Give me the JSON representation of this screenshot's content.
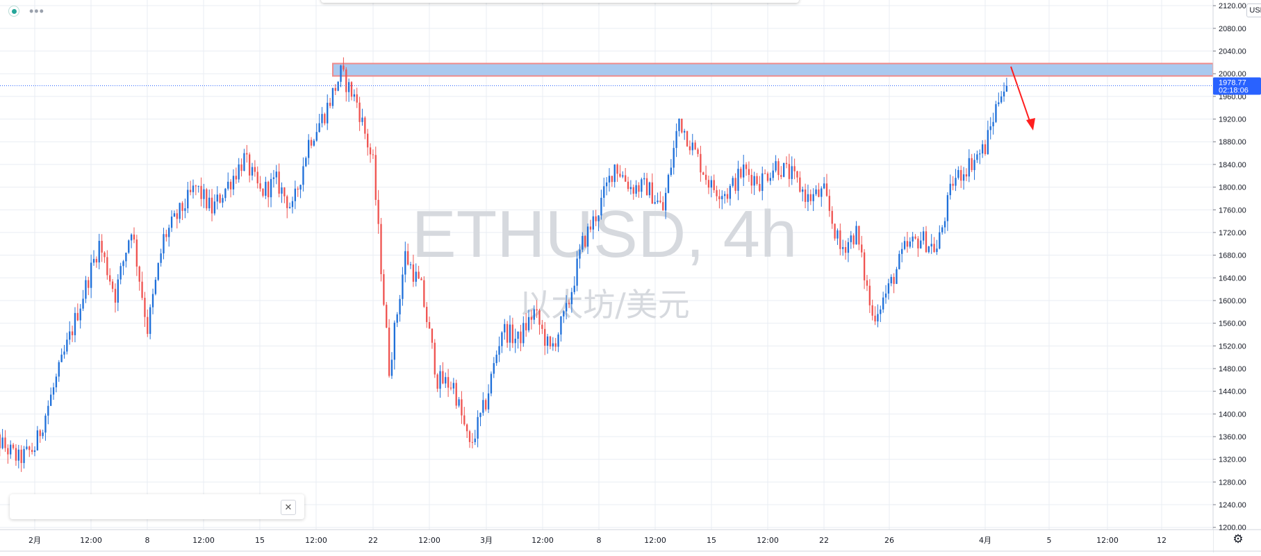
{
  "symbol_watermark": "ETHUSD, 4h",
  "description_watermark": "以太坊/美元",
  "currency": "USD",
  "last_price": "1978.77",
  "countdown": "02:18:06",
  "icons": {
    "status": "status-dot-icon",
    "more": "more-dots-icon",
    "close": "close-icon",
    "settings": "gear-icon"
  },
  "colors": {
    "up": "#1e6fd9",
    "down": "#ef5350",
    "grid": "#e9edf3",
    "zone_fill": "#a9c9ef",
    "zone_border": "#f08a8a",
    "arrow": "#ff1f1f",
    "price_label_bg": "#2962ff",
    "watermark": "#d6d9de"
  },
  "chart_data": {
    "type": "candlestick",
    "title": "ETHUSD, 4h",
    "subtitle": "以太坊/美元",
    "timeframe": "4h",
    "y_ticks": [
      "1200.00",
      "1240.00",
      "1280.00",
      "1320.00",
      "1360.00",
      "1400.00",
      "1440.00",
      "1480.00",
      "1520.00",
      "1560.00",
      "1600.00",
      "1640.00",
      "1680.00",
      "1720.00",
      "1760.00",
      "1800.00",
      "1840.00",
      "1880.00",
      "1920.00",
      "1960.00",
      "2000.00",
      "2040.00",
      "2080.00",
      "2120.00"
    ],
    "x_ticks": [
      "2月",
      "12:00",
      "8",
      "12:00",
      "15",
      "12:00",
      "22",
      "12:00",
      "3月",
      "12:00",
      "8",
      "12:00",
      "15",
      "12:00",
      "22",
      "26",
      "4月",
      "5",
      "12:00",
      "12"
    ],
    "ylim": [
      1196,
      2130
    ],
    "last_price": 1978.77,
    "resistance_zone": [
      1996,
      2018
    ],
    "anchors": [
      {
        "date": "2021-01-29",
        "price": 1370
      },
      {
        "date": "2021-01-31",
        "price": 1320
      },
      {
        "date": "2021-02-01",
        "price": 1340
      },
      {
        "date": "2021-02-03",
        "price": 1520
      },
      {
        "date": "2021-02-05",
        "price": 1700
      },
      {
        "date": "2021-02-06",
        "price": 1610
      },
      {
        "date": "2021-02-07",
        "price": 1730
      },
      {
        "date": "2021-02-08",
        "price": 1550
      },
      {
        "date": "2021-02-09",
        "price": 1710
      },
      {
        "date": "2021-02-11",
        "price": 1800
      },
      {
        "date": "2021-02-12",
        "price": 1760
      },
      {
        "date": "2021-02-14",
        "price": 1850
      },
      {
        "date": "2021-02-15",
        "price": 1790
      },
      {
        "date": "2021-02-16",
        "price": 1810
      },
      {
        "date": "2021-02-17",
        "price": 1760
      },
      {
        "date": "2021-02-18",
        "price": 1880
      },
      {
        "date": "2021-02-19",
        "price": 1930
      },
      {
        "date": "2021-02-20",
        "price": 2000
      },
      {
        "date": "2021-02-21",
        "price": 1950
      },
      {
        "date": "2021-02-22",
        "price": 1840
      },
      {
        "date": "2021-02-23",
        "price": 1480
      },
      {
        "date": "2021-02-24",
        "price": 1680
      },
      {
        "date": "2021-02-25",
        "price": 1620
      },
      {
        "date": "2021-02-26",
        "price": 1460
      },
      {
        "date": "2021-02-27",
        "price": 1450
      },
      {
        "date": "2021-02-28",
        "price": 1340
      },
      {
        "date": "2021-03-01",
        "price": 1420
      },
      {
        "date": "2021-03-02",
        "price": 1550
      },
      {
        "date": "2021-03-03",
        "price": 1530
      },
      {
        "date": "2021-03-04",
        "price": 1580
      },
      {
        "date": "2021-03-05",
        "price": 1510
      },
      {
        "date": "2021-03-06",
        "price": 1580
      },
      {
        "date": "2021-03-07",
        "price": 1700
      },
      {
        "date": "2021-03-08",
        "price": 1760
      },
      {
        "date": "2021-03-09",
        "price": 1840
      },
      {
        "date": "2021-03-10",
        "price": 1800
      },
      {
        "date": "2021-03-11",
        "price": 1800
      },
      {
        "date": "2021-03-12",
        "price": 1760
      },
      {
        "date": "2021-03-13",
        "price": 1920
      },
      {
        "date": "2021-03-14",
        "price": 1860
      },
      {
        "date": "2021-03-15",
        "price": 1800
      },
      {
        "date": "2021-03-16",
        "price": 1790
      },
      {
        "date": "2021-03-17",
        "price": 1830
      },
      {
        "date": "2021-03-18",
        "price": 1810
      },
      {
        "date": "2021-03-19",
        "price": 1840
      },
      {
        "date": "2021-03-20",
        "price": 1820
      },
      {
        "date": "2021-03-21",
        "price": 1780
      },
      {
        "date": "2021-03-22",
        "price": 1790
      },
      {
        "date": "2021-03-23",
        "price": 1690
      },
      {
        "date": "2021-03-24",
        "price": 1720
      },
      {
        "date": "2021-03-25",
        "price": 1570
      },
      {
        "date": "2021-03-26",
        "price": 1620
      },
      {
        "date": "2021-03-27",
        "price": 1690
      },
      {
        "date": "2021-03-28",
        "price": 1710
      },
      {
        "date": "2021-03-29",
        "price": 1690
      },
      {
        "date": "2021-03-30",
        "price": 1810
      },
      {
        "date": "2021-03-31",
        "price": 1840
      },
      {
        "date": "2021-04-01",
        "price": 1870
      },
      {
        "date": "2021-04-02",
        "price": 1975
      }
    ]
  }
}
